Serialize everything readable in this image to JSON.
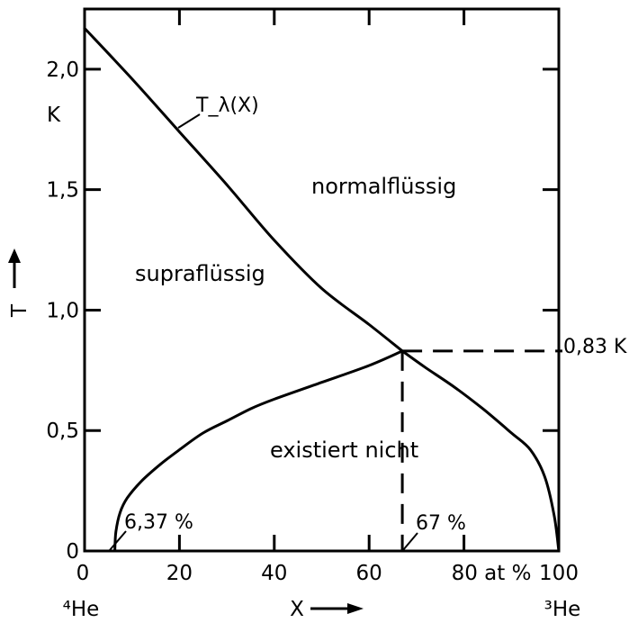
{
  "chart_data": {
    "type": "line",
    "xlim": [
      0,
      100
    ],
    "ylim": [
      0,
      2.25
    ],
    "x_ticks": [
      {
        "value": 0,
        "label": "0"
      },
      {
        "value": 20,
        "label": "20"
      },
      {
        "value": 40,
        "label": "40"
      },
      {
        "value": 60,
        "label": "60"
      },
      {
        "value": 80,
        "label": "80 at %"
      },
      {
        "value": 100,
        "label": "100"
      }
    ],
    "y_ticks": [
      {
        "value": 0,
        "label": "0"
      },
      {
        "value": 0.5,
        "label": "0,5"
      },
      {
        "value": 1.0,
        "label": "1,0"
      },
      {
        "value": 1.5,
        "label": "1,5"
      },
      {
        "value": 2.0,
        "label": "2,0"
      }
    ],
    "y_unit": "K",
    "ylabel": "T",
    "xlabel": "X",
    "x_left_end_label": "⁴He",
    "x_right_end_label": "³He",
    "series": [
      {
        "name": "T_λ(X)",
        "x": [
          0,
          10,
          20,
          30,
          40,
          50,
          60,
          67
        ],
        "y": [
          2.17,
          1.96,
          1.74,
          1.52,
          1.29,
          1.09,
          0.94,
          0.83
        ]
      },
      {
        "x": [
          67,
          72,
          78,
          84,
          90,
          94,
          97,
          99,
          100
        ],
        "y": [
          0.83,
          0.76,
          0.68,
          0.59,
          0.49,
          0.42,
          0.31,
          0.15,
          0
        ]
      },
      {
        "x": [
          6.37,
          6.6,
          7.5,
          9,
          12,
          16,
          20,
          25,
          30,
          35,
          40,
          50,
          60,
          67
        ],
        "y": [
          0,
          0.08,
          0.16,
          0.22,
          0.29,
          0.36,
          0.42,
          0.49,
          0.54,
          0.59,
          0.63,
          0.7,
          0.77,
          0.83
        ]
      }
    ],
    "reference_lines": [
      {
        "orientation": "horizontal",
        "y": 0.83,
        "x_from": 67,
        "x_to": 100,
        "style": "dashed",
        "label": "0,83 K"
      },
      {
        "orientation": "vertical",
        "x": 67,
        "y_from": 0,
        "y_to": 0.83,
        "style": "dashed"
      }
    ],
    "annotations": [
      {
        "text": "6,37 %",
        "x": 6.37,
        "y": 0
      },
      {
        "text": "67 %",
        "x": 67,
        "y": 0
      }
    ],
    "regions": [
      {
        "text": "normalflüssig"
      },
      {
        "text": "supraflüssig"
      },
      {
        "text": "existiert nicht"
      }
    ],
    "grid": false
  }
}
